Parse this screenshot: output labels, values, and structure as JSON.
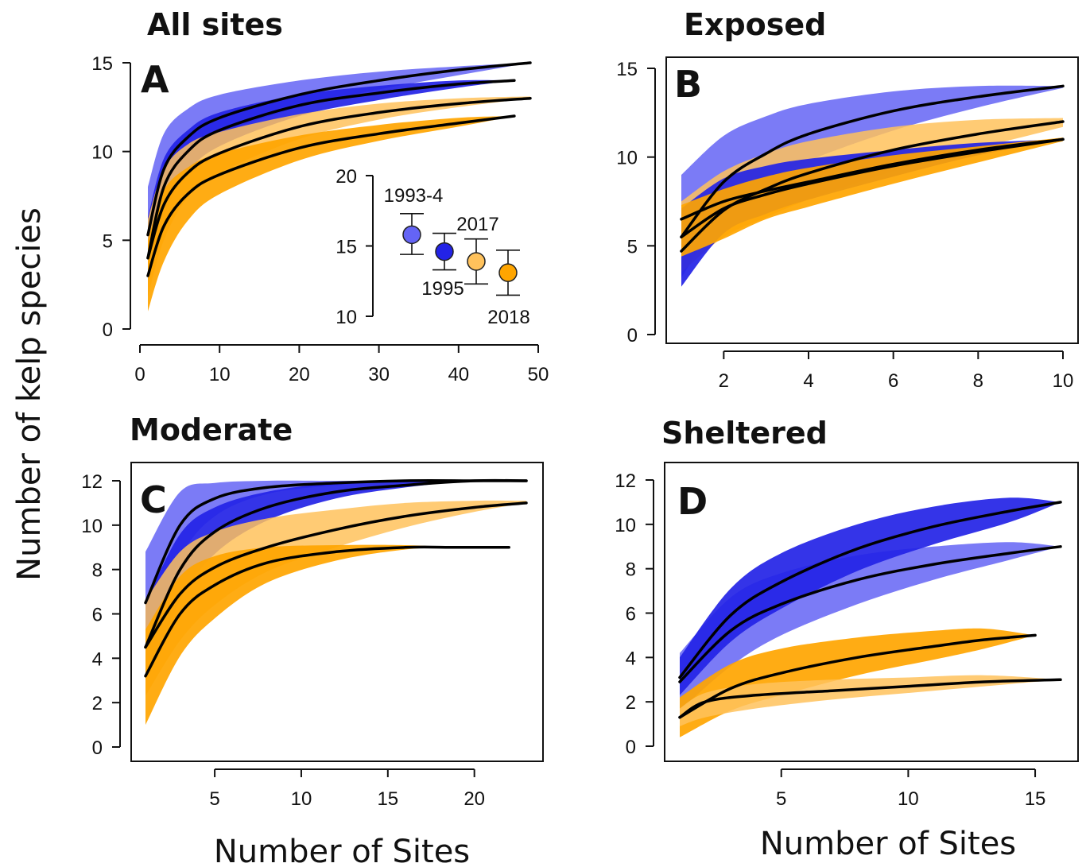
{
  "figure": {
    "ylabel": "Number of kelp species",
    "xlabel_left": "Number of Sites",
    "xlabel_right": "Number of Sites"
  },
  "colors": {
    "blue_dark": "#2323E6",
    "blue_light": "#6464F5",
    "orange_dark": "#FFA500",
    "orange_light": "#FFC25C",
    "line": "#000000"
  },
  "chart_data": [
    {
      "id": "A",
      "type": "area",
      "title": "All sites",
      "letter": "A",
      "xlim": [
        0,
        50
      ],
      "ylim": [
        0,
        15
      ],
      "xticks": [
        0,
        10,
        20,
        30,
        40,
        50
      ],
      "yticks": [
        0,
        5,
        10,
        15
      ],
      "series": [
        {
          "color": "blue_light",
          "x": [
            1,
            3,
            6,
            10,
            20,
            30,
            40,
            49
          ],
          "y": [
            5.3,
            9.0,
            10.8,
            11.9,
            13.2,
            14.0,
            14.6,
            15.0
          ],
          "lower": [
            3.5,
            7.5,
            9.8,
            11.0,
            12.5,
            13.5,
            14.3,
            15.0
          ],
          "upper": [
            8.0,
            11.0,
            12.4,
            13.2,
            14.0,
            14.5,
            14.8,
            15.0
          ]
        },
        {
          "color": "blue_dark",
          "x": [
            1,
            3,
            6,
            10,
            20,
            30,
            40,
            47
          ],
          "y": [
            4.0,
            8.0,
            10.0,
            11.2,
            12.6,
            13.3,
            13.8,
            14.0
          ],
          "lower": [
            2.5,
            6.3,
            8.8,
            10.3,
            12.0,
            12.9,
            13.6,
            14.0
          ],
          "upper": [
            6.3,
            9.6,
            11.2,
            12.2,
            13.2,
            13.7,
            14.0,
            14.0
          ]
        },
        {
          "color": "orange_light",
          "x": [
            1,
            3,
            6,
            10,
            20,
            30,
            40,
            49
          ],
          "y": [
            4.0,
            7.0,
            8.8,
            9.9,
            11.4,
            12.2,
            12.7,
            13.0
          ],
          "lower": [
            1.8,
            5.0,
            7.4,
            8.8,
            10.7,
            11.8,
            12.5,
            13.0
          ],
          "upper": [
            6.2,
            9.0,
            10.4,
            11.1,
            12.1,
            12.7,
            13.0,
            13.1
          ]
        },
        {
          "color": "orange_dark",
          "x": [
            1,
            3,
            6,
            10,
            20,
            30,
            40,
            47
          ],
          "y": [
            3.0,
            5.8,
            7.6,
            8.7,
            10.2,
            11.0,
            11.6,
            12.0
          ],
          "lower": [
            1.0,
            3.8,
            6.1,
            7.6,
            9.5,
            10.6,
            11.4,
            12.0
          ],
          "upper": [
            5.0,
            7.8,
            9.1,
            9.9,
            10.9,
            11.5,
            11.9,
            12.0
          ]
        }
      ],
      "inset": {
        "type": "scatter",
        "ylim": [
          10,
          20
        ],
        "yticks": [
          10,
          15,
          20
        ],
        "points": [
          {
            "label": "1993-4",
            "y": 15.8,
            "lo": 14.4,
            "hi": 17.3,
            "color": "blue_light"
          },
          {
            "label": "1995",
            "y": 14.6,
            "lo": 13.3,
            "hi": 15.9,
            "color": "blue_dark"
          },
          {
            "label": "2017",
            "y": 13.9,
            "lo": 12.3,
            "hi": 15.5,
            "color": "orange_light"
          },
          {
            "label": "2018",
            "y": 13.1,
            "lo": 11.5,
            "hi": 14.7,
            "color": "orange_dark"
          }
        ]
      }
    },
    {
      "id": "B",
      "type": "area",
      "title": "Exposed",
      "letter": "B",
      "xlim": [
        0.7,
        10.4
      ],
      "ylim": [
        0,
        15
      ],
      "xticks": [
        2,
        4,
        6,
        8,
        10
      ],
      "yticks": [
        0,
        5,
        10,
        15
      ],
      "series": [
        {
          "color": "blue_light",
          "x": [
            1,
            2,
            3,
            4,
            6,
            8,
            10
          ],
          "y": [
            5.5,
            8.6,
            10.2,
            11.3,
            12.6,
            13.4,
            14.0
          ],
          "lower": [
            3.2,
            6.8,
            8.6,
            9.8,
            11.5,
            12.8,
            13.9
          ],
          "upper": [
            9.0,
            11.2,
            12.3,
            13.0,
            13.7,
            14.0,
            14.0
          ]
        },
        {
          "color": "orange_light",
          "x": [
            1,
            2,
            3,
            4,
            6,
            8,
            10
          ],
          "y": [
            4.7,
            7.0,
            8.2,
            9.1,
            10.4,
            11.3,
            12.0
          ],
          "lower": [
            3.5,
            5.5,
            6.6,
            7.6,
            9.2,
            10.5,
            11.7
          ],
          "upper": [
            7.5,
            9.2,
            10.2,
            10.9,
            11.7,
            12.1,
            12.2
          ]
        },
        {
          "color": "blue_dark",
          "x": [
            1,
            2,
            3,
            4,
            6,
            8,
            10
          ],
          "y": [
            6.5,
            7.5,
            8.1,
            8.6,
            9.6,
            10.4,
            11.0
          ],
          "lower": [
            2.7,
            5.7,
            6.8,
            7.6,
            8.9,
            10.1,
            11.0
          ],
          "upper": [
            7.1,
            8.8,
            9.5,
            9.9,
            10.4,
            10.8,
            11.0
          ]
        },
        {
          "color": "orange_dark",
          "x": [
            1,
            2,
            3,
            4,
            6,
            8,
            10
          ],
          "y": [
            5.5,
            7.1,
            7.9,
            8.5,
            9.5,
            10.3,
            11.0
          ],
          "lower": [
            4.4,
            5.4,
            6.5,
            7.2,
            8.5,
            9.7,
            10.9
          ],
          "upper": [
            7.3,
            8.2,
            8.9,
            9.4,
            10.1,
            10.6,
            11.1
          ]
        }
      ]
    },
    {
      "id": "C",
      "type": "area",
      "title": "Moderate",
      "letter": "C",
      "xlim": [
        0.5,
        24
      ],
      "ylim": [
        0,
        12.3
      ],
      "xticks": [
        5,
        10,
        15,
        20
      ],
      "yticks": [
        0,
        2,
        4,
        6,
        8,
        10,
        12
      ],
      "series": [
        {
          "color": "blue_light",
          "x": [
            1,
            3,
            5,
            8,
            12,
            16,
            20,
            23
          ],
          "y": [
            6.5,
            10.0,
            11.2,
            11.7,
            11.9,
            12.0,
            12.0,
            12.0
          ],
          "lower": [
            4.4,
            8.5,
            10.4,
            11.4,
            11.8,
            12.0,
            12.0,
            12.0
          ],
          "upper": [
            8.8,
            11.5,
            11.9,
            12.0,
            12.0,
            12.0,
            12.0,
            12.0
          ]
        },
        {
          "color": "blue_dark",
          "x": [
            1,
            3,
            5,
            8,
            12,
            16,
            20,
            23
          ],
          "y": [
            4.5,
            8.0,
            9.7,
            10.8,
            11.5,
            11.8,
            12.0,
            12.0
          ],
          "lower": [
            2.9,
            6.6,
            8.7,
            10.2,
            11.2,
            11.7,
            12.0,
            12.0
          ],
          "upper": [
            6.5,
            9.6,
            10.8,
            11.5,
            11.9,
            12.0,
            12.0,
            12.0
          ]
        },
        {
          "color": "orange_light",
          "x": [
            1,
            3,
            5,
            8,
            12,
            16,
            20,
            23
          ],
          "y": [
            4.5,
            6.9,
            8.1,
            9.0,
            9.8,
            10.4,
            10.8,
            11.0
          ],
          "lower": [
            2.3,
            4.8,
            6.4,
            7.9,
            9.0,
            9.9,
            10.6,
            11.0
          ],
          "upper": [
            6.6,
            8.8,
            9.7,
            10.3,
            10.7,
            11.0,
            11.1,
            11.1
          ]
        },
        {
          "color": "orange_dark",
          "x": [
            1,
            3,
            5,
            8,
            12,
            16,
            19,
            22
          ],
          "y": [
            3.2,
            6.0,
            7.3,
            8.3,
            8.8,
            9.0,
            9.0,
            9.0
          ],
          "lower": [
            1.0,
            4.1,
            5.8,
            7.4,
            8.4,
            8.9,
            9.0,
            9.0
          ],
          "upper": [
            5.3,
            7.7,
            8.6,
            9.0,
            9.1,
            9.1,
            9.0,
            9.0
          ]
        }
      ]
    },
    {
      "id": "D",
      "type": "area",
      "title": "Sheltered",
      "letter": "D",
      "xlim": [
        0.6,
        16.6
      ],
      "ylim": [
        0,
        12.3
      ],
      "xticks": [
        5,
        10,
        15
      ],
      "yticks": [
        0,
        2,
        4,
        6,
        8,
        10,
        12
      ],
      "series": [
        {
          "color": "blue_light",
          "x": [
            1,
            3,
            5,
            8,
            11,
            14,
            16
          ],
          "y": [
            2.9,
            5.2,
            6.4,
            7.5,
            8.2,
            8.7,
            9.0
          ],
          "lower": [
            1.6,
            3.6,
            5.0,
            6.4,
            7.5,
            8.4,
            9.0
          ],
          "upper": [
            4.2,
            6.7,
            7.8,
            8.6,
            9.0,
            9.2,
            9.0
          ]
        },
        {
          "color": "blue_dark",
          "x": [
            1,
            3,
            5,
            8,
            11,
            14,
            16
          ],
          "y": [
            3.1,
            5.9,
            7.4,
            8.9,
            9.9,
            10.6,
            11.0
          ],
          "lower": [
            2.3,
            4.7,
            6.2,
            7.9,
            9.1,
            10.1,
            11.0
          ],
          "upper": [
            4.0,
            7.1,
            8.7,
            10.0,
            10.8,
            11.2,
            11.0
          ]
        },
        {
          "color": "orange_dark",
          "x": [
            1,
            3,
            5,
            8,
            11,
            13,
            15
          ],
          "y": [
            1.3,
            2.6,
            3.3,
            4.0,
            4.5,
            4.8,
            5.0
          ],
          "lower": [
            0.4,
            1.6,
            2.3,
            3.2,
            3.9,
            4.4,
            5.0
          ],
          "upper": [
            2.2,
            3.7,
            4.4,
            4.9,
            5.2,
            5.3,
            5.0
          ]
        },
        {
          "color": "orange_light",
          "x": [
            1,
            2,
            4,
            7,
            10,
            13,
            16
          ],
          "y": [
            1.3,
            2.0,
            2.3,
            2.5,
            2.7,
            2.9,
            3.0
          ],
          "lower": [
            0.9,
            1.3,
            1.7,
            2.1,
            2.4,
            2.7,
            3.0
          ],
          "upper": [
            1.7,
            2.4,
            2.8,
            3.0,
            3.1,
            3.2,
            3.0
          ]
        }
      ]
    }
  ]
}
